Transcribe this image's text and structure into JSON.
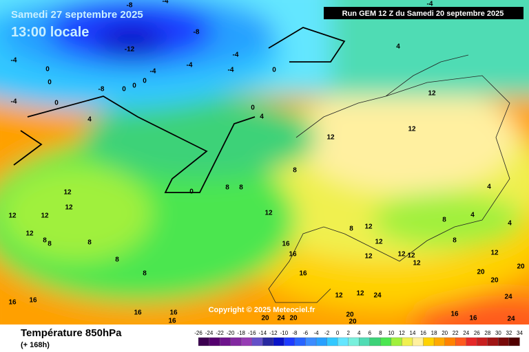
{
  "header": {
    "date": "Samedi 27 septembre 2025",
    "time": "13:00 locale",
    "run": "Run GEM 12 Z du Samedi 20 septembre 2025"
  },
  "copyright": "Copyright © 2025 Meteociel.fr",
  "footer": {
    "title": "Température 850hPa",
    "lead": "(+ 168h)"
  },
  "legend": {
    "ticks": [
      -26,
      -24,
      -22,
      -20,
      -18,
      -16,
      -14,
      -12,
      -10,
      -8,
      -6,
      -4,
      -2,
      0,
      2,
      4,
      6,
      8,
      10,
      12,
      14,
      16,
      18,
      20,
      22,
      24,
      26,
      28,
      30,
      32,
      34
    ],
    "colors": [
      "#3c0050",
      "#55006e",
      "#6e148c",
      "#8228a0",
      "#963cb4",
      "#6450c8",
      "#2828a0",
      "#0a14c8",
      "#1e3cff",
      "#2864ff",
      "#3c8cff",
      "#28a0ff",
      "#32c8ff",
      "#64e6ff",
      "#78f0dc",
      "#50dcb4",
      "#3cd278",
      "#4be650",
      "#a0f03c",
      "#f0f050",
      "#fff0a0",
      "#ffd200",
      "#ffaa00",
      "#ff8200",
      "#ff5a1e",
      "#e62828",
      "#c81e1e",
      "#a01414",
      "#780a0a",
      "#500000"
    ]
  },
  "contour_labels": [
    -8,
    -4,
    -4,
    -8,
    -12,
    -4,
    -4,
    -4,
    0,
    0,
    -4,
    0,
    0,
    0,
    -8,
    0,
    -4,
    0,
    4,
    0,
    4,
    -4,
    4,
    12,
    12,
    12,
    8,
    0,
    8,
    8,
    12,
    12,
    12,
    12,
    12,
    8,
    8,
    8,
    8,
    8,
    12,
    8,
    12,
    8,
    4,
    4,
    4,
    12,
    16,
    16,
    12,
    12,
    12,
    12,
    8,
    12,
    16,
    20,
    20,
    20,
    24,
    16,
    16,
    16,
    16,
    16,
    12,
    12,
    24,
    20,
    24,
    20,
    20,
    20,
    16,
    16,
    24
  ]
}
